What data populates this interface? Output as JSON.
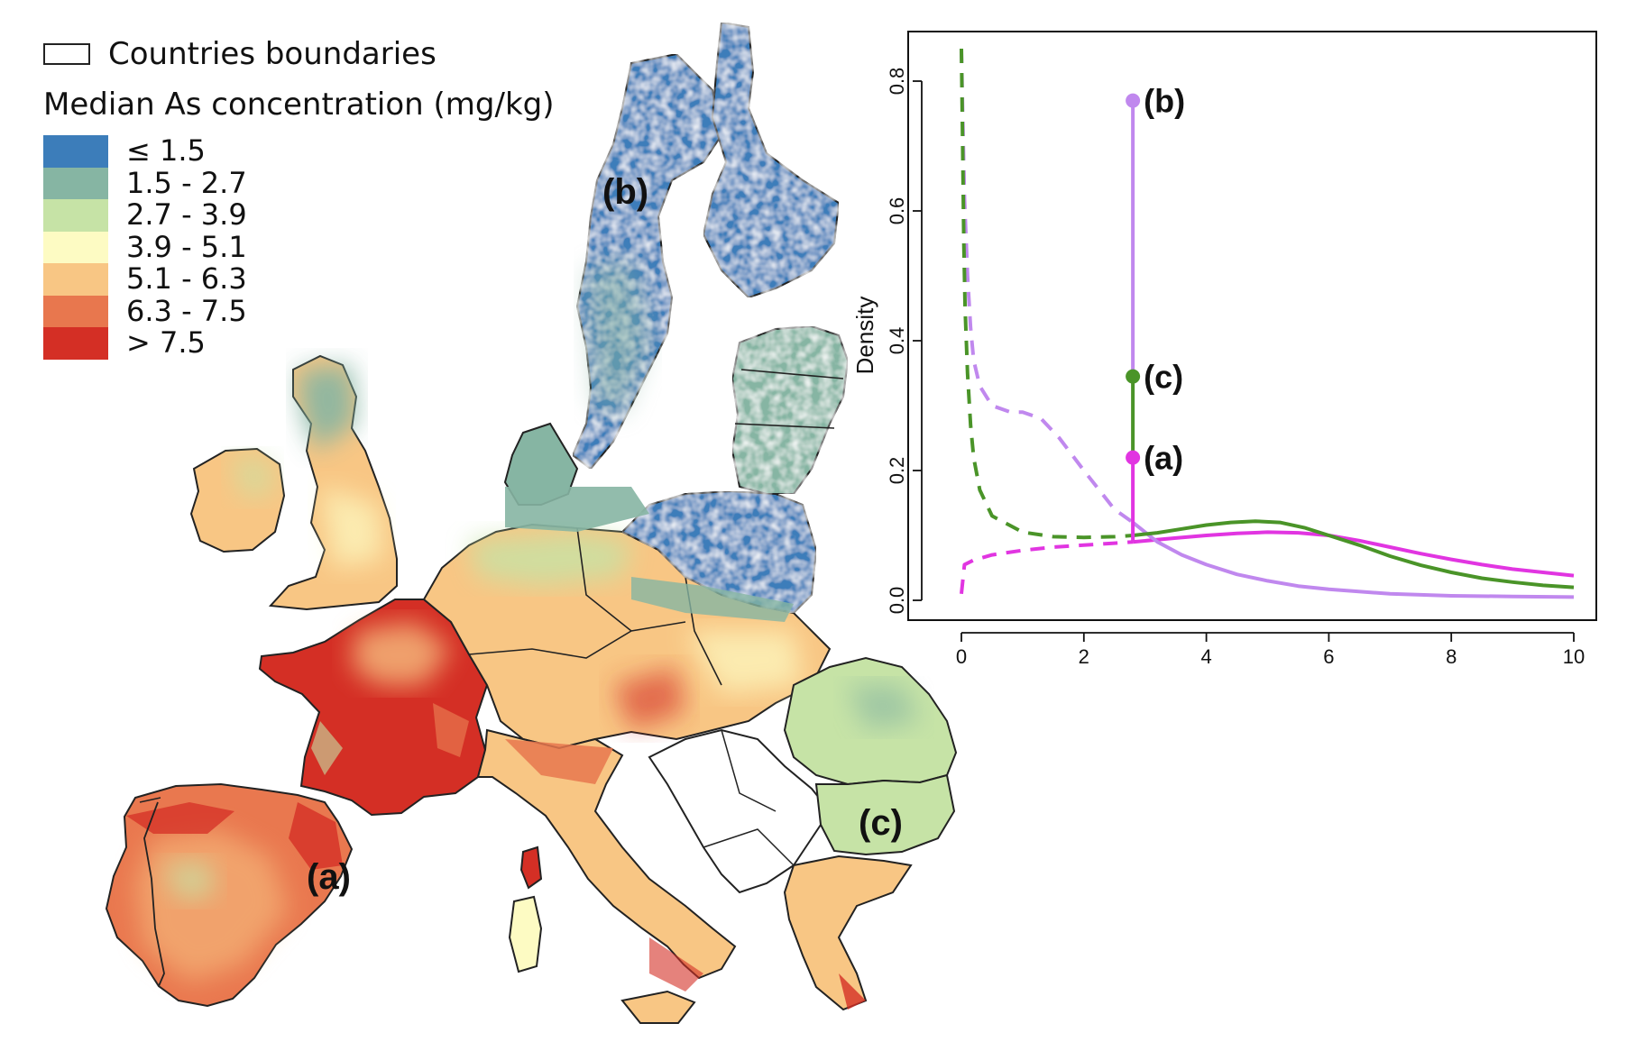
{
  "legend": {
    "boundaries_label": "Countries boundaries",
    "title": "Median As concentration (mg/kg)",
    "classes": [
      {
        "label": "≤ 1.5",
        "color": "#3c7dba"
      },
      {
        "label": "1.5 - 2.7",
        "color": "#86b5a3"
      },
      {
        "label": "2.7 - 3.9",
        "color": "#c6e3a6"
      },
      {
        "label": "3.9 - 5.1",
        "color": "#fdfbc3"
      },
      {
        "label": "5.1 - 6.3",
        "color": "#f8c684"
      },
      {
        "label": "6.3 - 7.5",
        "color": "#e8774e"
      },
      {
        "label": "> 7.5",
        "color": "#d42f25"
      }
    ]
  },
  "map": {
    "region_labels": [
      "(a)",
      "(b)",
      "(c)"
    ]
  },
  "chart_data": {
    "type": "line",
    "title": "",
    "xlabel": "",
    "ylabel": "Density",
    "xlim": [
      0,
      10
    ],
    "ylim": [
      0,
      0.85
    ],
    "xticks": [
      "0",
      "2",
      "4",
      "6",
      "8",
      "10"
    ],
    "yticks": [
      "0.0",
      "0.2",
      "0.4",
      "0.6",
      "0.8"
    ],
    "threshold_x": 2.8,
    "series": [
      {
        "region": "(a)",
        "color": "#e135e1",
        "x": [
          0,
          0.05,
          0.2,
          0.5,
          1,
          1.5,
          2,
          2.5,
          2.8,
          3.5,
          4,
          4.5,
          5,
          5.5,
          6,
          6.5,
          7,
          7.5,
          8,
          8.5,
          9,
          9.5,
          10
        ],
        "y": [
          0.01,
          0.055,
          0.062,
          0.07,
          0.077,
          0.082,
          0.085,
          0.088,
          0.09,
          0.096,
          0.1,
          0.103,
          0.105,
          0.104,
          0.1,
          0.092,
          0.082,
          0.072,
          0.063,
          0.055,
          0.048,
          0.043,
          0.038
        ],
        "marker": 0.22
      },
      {
        "region": "(b)",
        "color": "#c088ee",
        "x": [
          0,
          0.02,
          0.05,
          0.1,
          0.15,
          0.2,
          0.3,
          0.5,
          0.8,
          1,
          1.3,
          1.6,
          2,
          2.5,
          2.8,
          3.2,
          3.6,
          4,
          4.5,
          5,
          5.5,
          6,
          7,
          8,
          9,
          10
        ],
        "y": [
          0.85,
          0.75,
          0.62,
          0.5,
          0.42,
          0.37,
          0.33,
          0.3,
          0.29,
          0.29,
          0.28,
          0.25,
          0.2,
          0.14,
          0.12,
          0.09,
          0.07,
          0.055,
          0.04,
          0.03,
          0.022,
          0.017,
          0.01,
          0.007,
          0.006,
          0.005
        ],
        "marker": 0.77
      },
      {
        "region": "(c)",
        "color": "#4a9428",
        "x": [
          0,
          0.02,
          0.04,
          0.06,
          0.1,
          0.15,
          0.2,
          0.3,
          0.5,
          1,
          1.5,
          2,
          2.5,
          2.8,
          3.2,
          3.6,
          4,
          4.4,
          4.8,
          5.2,
          5.6,
          6,
          6.5,
          7,
          7.5,
          8,
          8.5,
          9,
          9.5,
          10
        ],
        "y": [
          0.85,
          0.7,
          0.55,
          0.45,
          0.35,
          0.27,
          0.22,
          0.17,
          0.13,
          0.105,
          0.098,
          0.097,
          0.098,
          0.1,
          0.104,
          0.11,
          0.116,
          0.12,
          0.122,
          0.12,
          0.112,
          0.1,
          0.085,
          0.068,
          0.054,
          0.043,
          0.034,
          0.028,
          0.023,
          0.02
        ],
        "marker": 0.345
      }
    ]
  }
}
